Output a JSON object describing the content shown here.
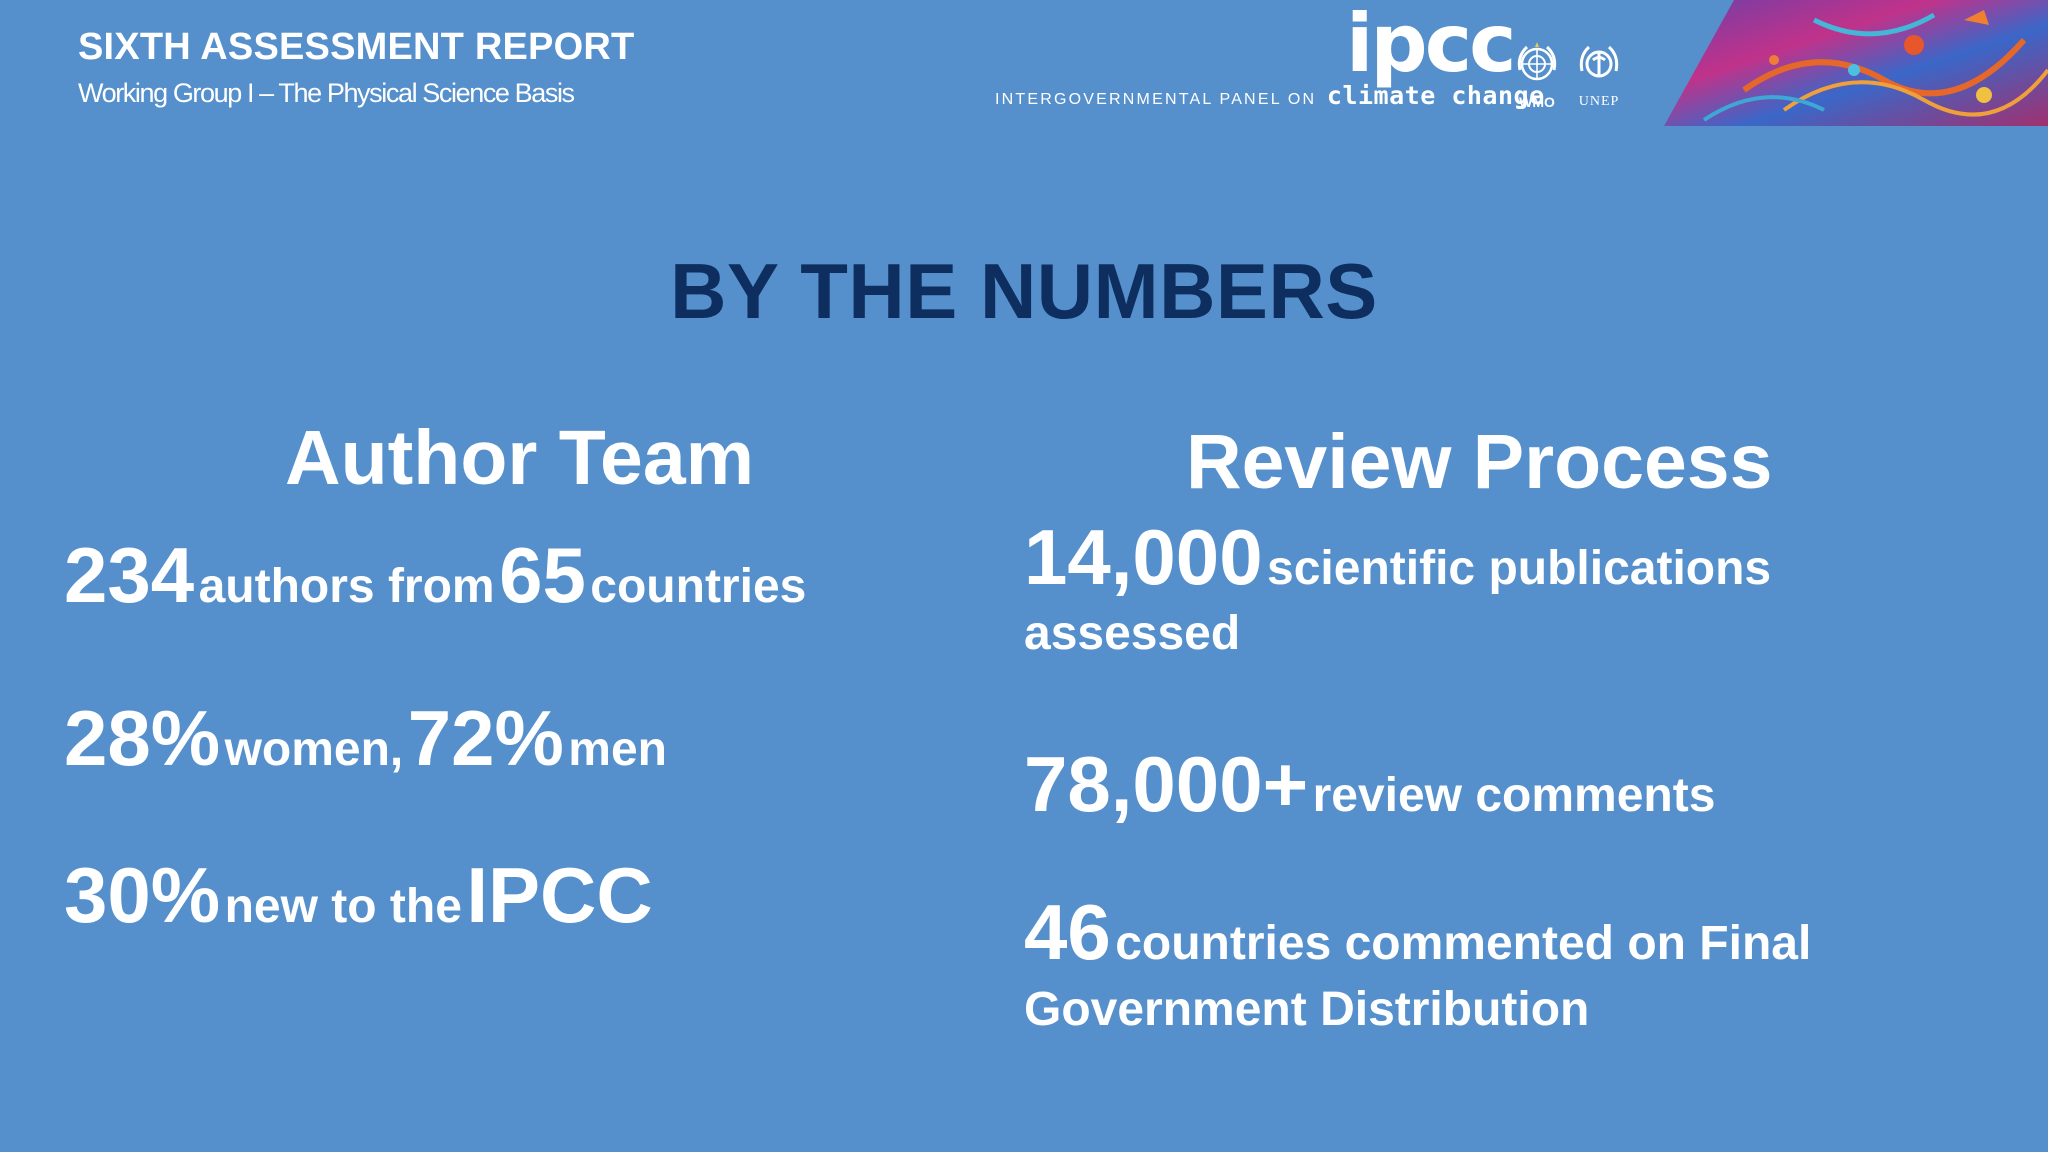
{
  "header": {
    "title": "SIXTH ASSESSMENT REPORT",
    "subtitle": "Working Group I – The Physical Science Basis"
  },
  "logos": {
    "ipcc_word": "ipcc",
    "panel_prefix": "INTERGOVERNMENTAL PANEL ON",
    "panel_suffix": "climate change",
    "wmo": "WMO",
    "unep": "UNEP",
    "icons": [
      "un-emblem-icon",
      "unep-emblem-icon"
    ]
  },
  "main": {
    "heading": "BY THE NUMBERS",
    "author_team": {
      "heading": "Author Team",
      "line1": {
        "n1": "234",
        "t1": "authors from",
        "n2": "65",
        "t2": "countries"
      },
      "line2": {
        "n1": "28%",
        "t1": "women,",
        "n2": "72%",
        "t2": "men"
      },
      "line3": {
        "n1": "30%",
        "t1": "new to the",
        "n2": "IPCC"
      }
    },
    "review_process": {
      "heading": "Review Process",
      "line1": {
        "n1": "14,000",
        "t1": "scientific publications",
        "t2": "assessed"
      },
      "line2": {
        "n1": "78,000+",
        "t1": "review comments"
      },
      "line3": {
        "n1": "46",
        "t1": "countries commented on Final",
        "t2": "Government Distribution"
      }
    }
  },
  "colors": {
    "background": "#5590cc",
    "heading": "#0d2e5e",
    "text": "#ffffff"
  }
}
